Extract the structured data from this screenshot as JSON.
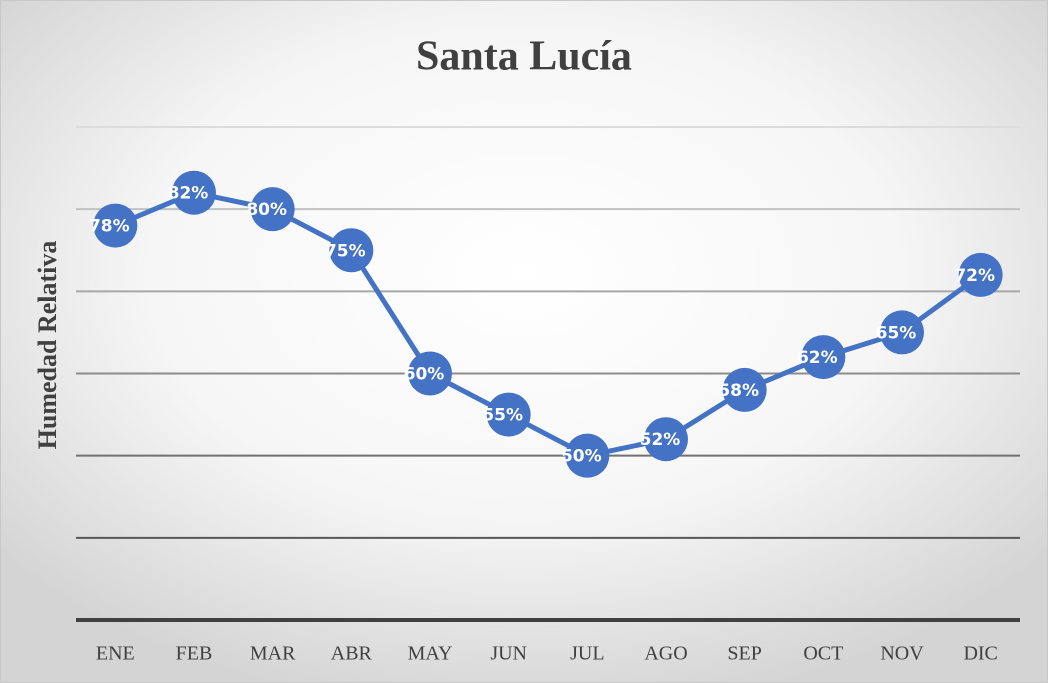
{
  "chart_data": {
    "type": "line",
    "title": "Santa Lucía",
    "y_label": "Humedad Relativa",
    "categories": [
      "ENE",
      "FEB",
      "MAR",
      "ABR",
      "MAY",
      "JUN",
      "JUL",
      "AGO",
      "SEP",
      "OCT",
      "NOV",
      "DIC"
    ],
    "series": [
      {
        "color": "#4472c4",
        "values": [
          78,
          82,
          80,
          75,
          60,
          55,
          50,
          52,
          58,
          62,
          65,
          72
        ],
        "value_labels": [
          "78%",
          "82%",
          "80%",
          "75%",
          "60%",
          "55%",
          "50%",
          "52%",
          "58%",
          "62%",
          "65%",
          "72%"
        ]
      }
    ],
    "ylim": [
      30,
      90
    ],
    "yticks": [
      30,
      40,
      50,
      60,
      70,
      80,
      90
    ],
    "grid": true
  }
}
